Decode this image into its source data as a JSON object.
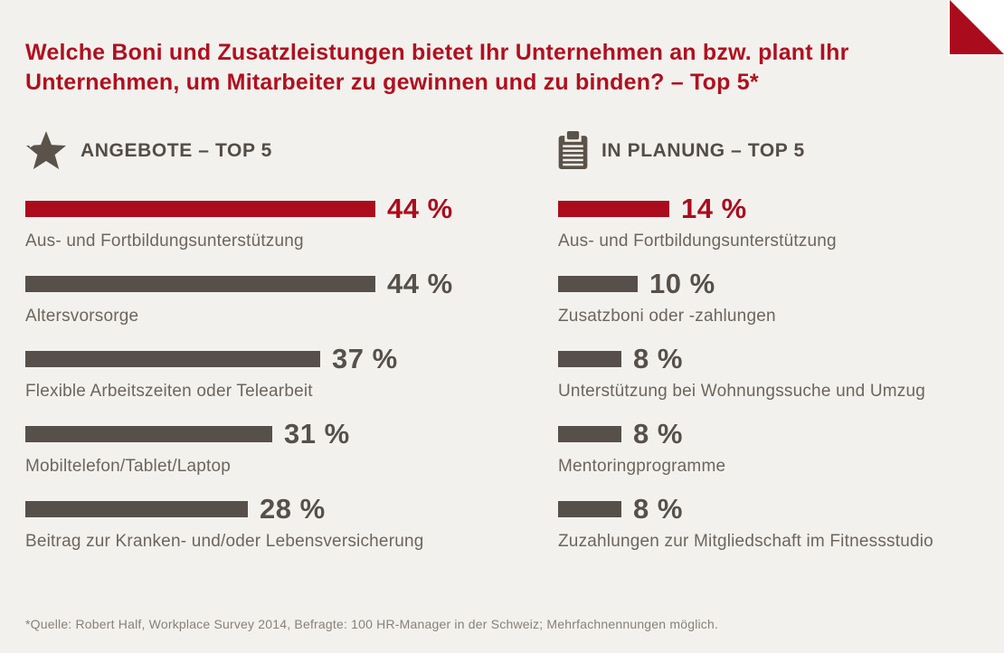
{
  "theme": {
    "background": "#f2f1ee",
    "accent_red": "#ab0c1d",
    "title_red": "#b0101f",
    "bar_brown": "#57504a",
    "header_color": "#544d45",
    "label_color": "#6e655c",
    "footnote_color": "#8a8177"
  },
  "title": {
    "line1": "Welche Boni und Zusatzleistungen bietet Ihr Unternehmen an bzw. plant Ihr",
    "line2": "Unternehmen, um Mitarbeiter zu gewinnen und zu binden? – Top 5*"
  },
  "chart_data": [
    {
      "type": "bar",
      "orientation": "horizontal",
      "group": "ANGEBOTE – TOP 5",
      "icon": "star-icon",
      "unit": "%",
      "highlight_index": 0,
      "categories": [
        "Aus- und Fortbildungsunterstützung",
        "Altersvorsorge",
        "Flexible Arbeitszeiten oder Telearbeit",
        "Mobiltelefon/Tablet/Laptop",
        "Beitrag zur Kranken- und/oder Lebensversicherung"
      ],
      "values": [
        44,
        44,
        37,
        31,
        28
      ],
      "value_labels": [
        "44 %",
        "44 %",
        "37 %",
        "31 %",
        "28 %"
      ]
    },
    {
      "type": "bar",
      "orientation": "horizontal",
      "group": "IN PLANUNG – TOP 5",
      "icon": "clipboard-icon",
      "unit": "%",
      "highlight_index": 0,
      "categories": [
        "Aus- und Fortbildungsunterstützung",
        "Zusatzboni oder -zahlungen",
        "Unterstützung bei Wohnungssuche und Umzug",
        "Mentoringprogramme",
        "Zuzahlungen zur Mitgliedschaft im Fitnessstudio"
      ],
      "values": [
        14,
        10,
        8,
        8,
        8
      ],
      "value_labels": [
        "14 %",
        "10 %",
        "8 %",
        "8 %",
        "8 %"
      ]
    }
  ],
  "footnote": "*Quelle: Robert Half, Workplace Survey 2014, Befragte: 100 HR-Manager in der Schweiz; Mehrfachnennungen möglich."
}
